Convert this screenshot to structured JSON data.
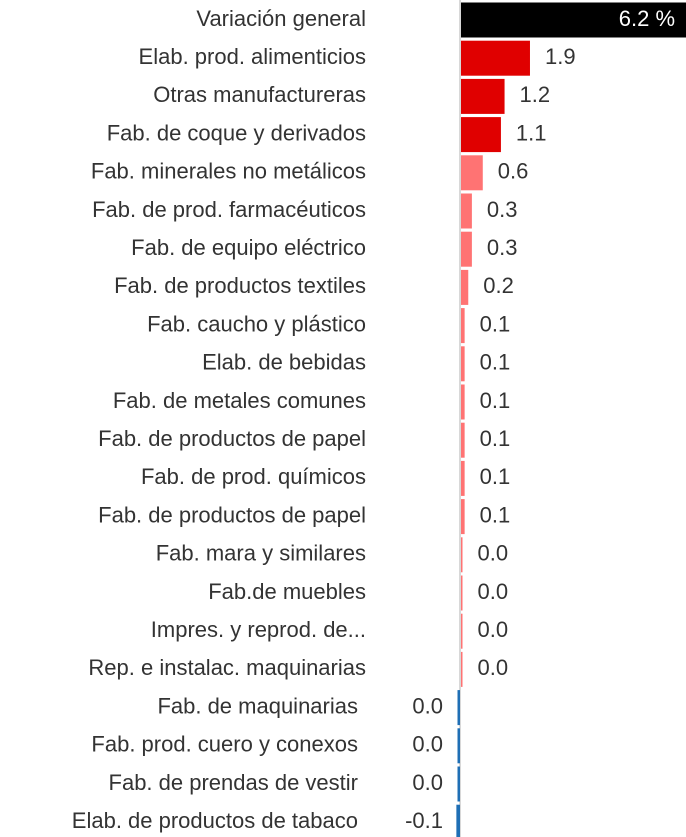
{
  "chart_data": {
    "type": "bar",
    "orientation": "horizontal",
    "categories": [
      "Variación general",
      "Elab. prod. alimenticios",
      "Otras manufactureras",
      "Fab. de coque y derivados",
      "Fab. minerales no metálicos",
      "Fab. de prod. farmacéuticos",
      "Fab. de equipo eléctrico",
      "Fab. de productos textiles",
      "Fab. caucho y plástico",
      "Elab. de bebidas",
      "Fab. de metales comunes",
      "Fab. de productos de papel",
      "Fab. de prod. químicos",
      "Fab. de productos de papel",
      "Fab. mara y similares",
      "Fab.de muebles",
      "Impres. y reprod. de...",
      "Rep. e instalac. maquinarias",
      "Fab. de maquinarias",
      "Fab. prod. cuero y conexos",
      "Fab. de prendas de vestir",
      "Elab. de productos de tabaco"
    ],
    "values": [
      6.2,
      1.9,
      1.2,
      1.1,
      0.6,
      0.3,
      0.3,
      0.2,
      0.1,
      0.1,
      0.1,
      0.1,
      0.1,
      0.1,
      0.0,
      0.0,
      0.0,
      0.0,
      -0.01,
      -0.01,
      -0.01,
      -0.1
    ],
    "value_labels": [
      "6.2 %",
      "1.9",
      "1.2",
      "1.1",
      "0.6",
      "0.3",
      "0.3",
      "0.2",
      "0.1",
      "0.1",
      "0.1",
      "0.1",
      "0.1",
      "0.1",
      "0.0",
      "0.0",
      "0.0",
      "0.0",
      "0.0",
      "0.0",
      "0.0",
      "-0.1"
    ],
    "colors": [
      "#000000",
      "#e00000",
      "#e00000",
      "#e00000",
      "#ff7373",
      "#ff7373",
      "#ff7373",
      "#ff7373",
      "#ff7373",
      "#ff7373",
      "#ff7373",
      "#ff7373",
      "#ff7373",
      "#ff7373",
      "#ff7373",
      "#ff7373",
      "#ff7373",
      "#ff7373",
      "#1f6fb5",
      "#1f6fb5",
      "#1f6fb5",
      "#1f6fb5"
    ]
  }
}
